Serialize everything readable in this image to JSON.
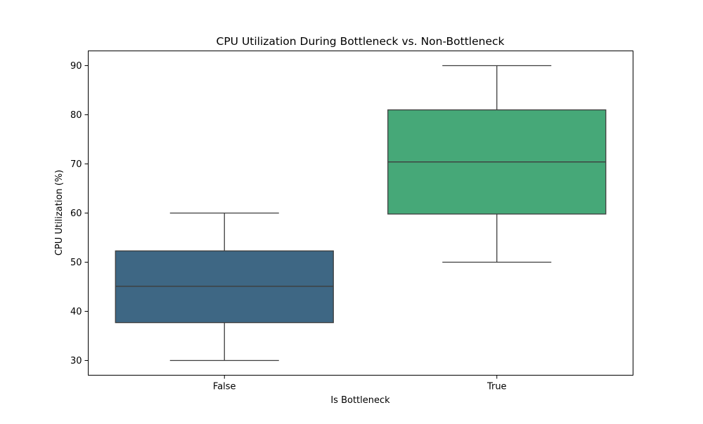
{
  "chart_data": {
    "type": "box",
    "title": "CPU Utilization During Bottleneck vs. Non-Bottleneck",
    "xlabel": "Is Bottleneck",
    "ylabel": "CPU Utilization (%)",
    "ylim": [
      27,
      93
    ],
    "y_ticks": [
      30,
      40,
      50,
      60,
      70,
      80,
      90
    ],
    "grid": false,
    "legend": "none",
    "categories": [
      "False",
      "True"
    ],
    "boxes": [
      {
        "category": "False",
        "whisker_low": 30,
        "q1": 37.7,
        "median": 45.1,
        "q3": 52.3,
        "whisker_high": 60,
        "color": "#3e6784"
      },
      {
        "category": "True",
        "whisker_low": 50,
        "q1": 59.8,
        "median": 70.4,
        "q3": 81.0,
        "whisker_high": 90,
        "color": "#46a878"
      }
    ]
  }
}
